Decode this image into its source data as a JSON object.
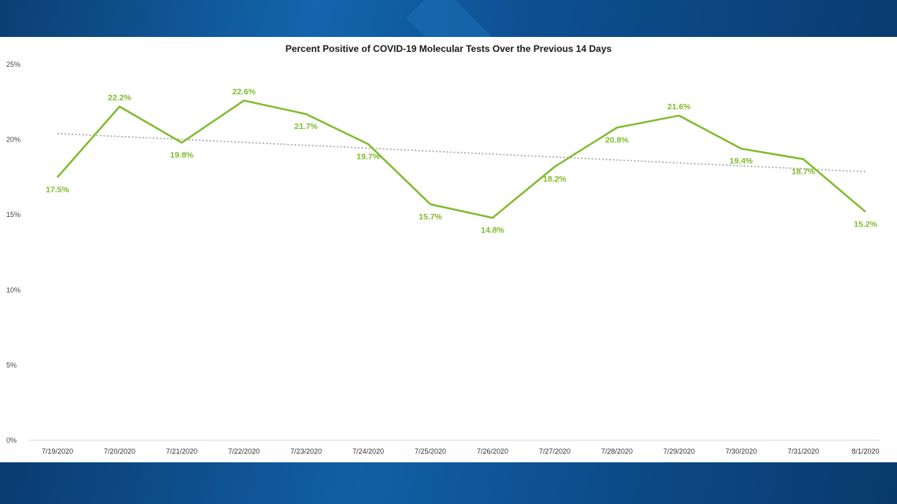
{
  "chart_data": {
    "type": "line",
    "title": "Percent Positive of COVID-19 Molecular Tests Over the Previous 14 Days",
    "xlabel": "",
    "ylabel": "",
    "categories": [
      "7/19/2020",
      "7/20/2020",
      "7/21/2020",
      "7/22/2020",
      "7/23/2020",
      "7/24/2020",
      "7/25/2020",
      "7/26/2020",
      "7/27/2020",
      "7/28/2020",
      "7/29/2020",
      "7/30/2020",
      "7/31/2020",
      "8/1/2020"
    ],
    "values": [
      17.5,
      22.2,
      19.8,
      22.6,
      21.7,
      19.7,
      15.7,
      14.8,
      18.2,
      20.8,
      21.6,
      19.4,
      18.7,
      15.2
    ],
    "data_labels": [
      "17.5%",
      "22.2%",
      "19.8%",
      "22.6%",
      "21.7%",
      "19.7%",
      "15.7%",
      "14.8%",
      "18.2%",
      "20.8%",
      "21.6%",
      "19.4%",
      "18.7%",
      "15.2%"
    ],
    "y_ticks": [
      0,
      5,
      10,
      15,
      20,
      25
    ],
    "y_tick_labels": [
      "0%",
      "5%",
      "10%",
      "15%",
      "20%",
      "25%"
    ],
    "ylim": [
      0,
      25
    ],
    "trendline": true,
    "trendline_style": "dotted",
    "grid": false,
    "legend": "none",
    "colors": {
      "line": "#7fba2c",
      "labels": "#7fba2c",
      "trend": "#a6a6a6",
      "axis": "#d9d9d9"
    }
  }
}
